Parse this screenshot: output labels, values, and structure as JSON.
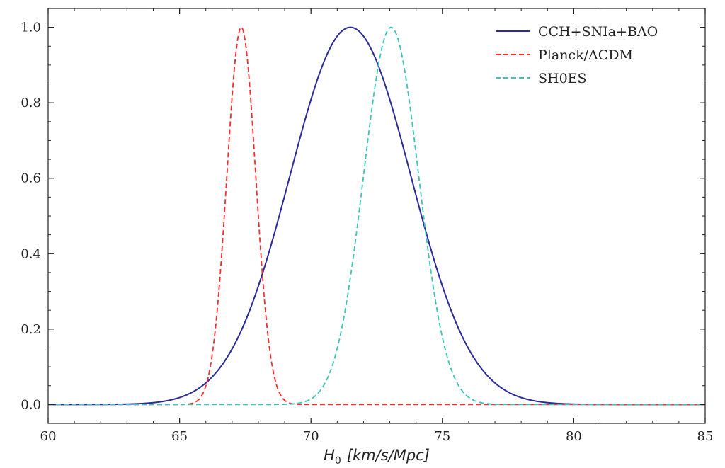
{
  "chart_data": {
    "type": "line",
    "xlabel_main": "H",
    "xlabel_sub": "0",
    "xlabel_units": "[km/s/Mpc]",
    "ylabel": "",
    "xlim": [
      60,
      85
    ],
    "ylim": [
      -0.05,
      1.05
    ],
    "x_ticks": [
      60,
      65,
      70,
      75,
      80,
      85
    ],
    "x_tick_labels": [
      "60",
      "65",
      "70",
      "75",
      "80",
      "85"
    ],
    "y_ticks": [
      0.0,
      0.2,
      0.4,
      0.6,
      0.8,
      1.0
    ],
    "y_tick_labels": [
      "0.0",
      "0.2",
      "0.4",
      "0.6",
      "0.8",
      "1.0"
    ],
    "x_minor_step": 1,
    "y_minor_step": 0.05,
    "grid": false,
    "legend_position": "top-right",
    "series": [
      {
        "name": "CCH+SNIa+BAO",
        "peak_x": 71.5,
        "sigma": 2.3,
        "peak_y": 1.0,
        "color": "#2b2b9a",
        "style": "solid"
      },
      {
        "name": "Planck/ΛCDM",
        "peak_x": 67.35,
        "sigma": 0.55,
        "peak_y": 1.0,
        "color": "#ff2b2b",
        "style": "dashed"
      },
      {
        "name": "SH0ES",
        "peak_x": 73.05,
        "sigma": 1.05,
        "peak_y": 1.0,
        "color": "#3cc4b8",
        "style": "dashed"
      }
    ]
  }
}
